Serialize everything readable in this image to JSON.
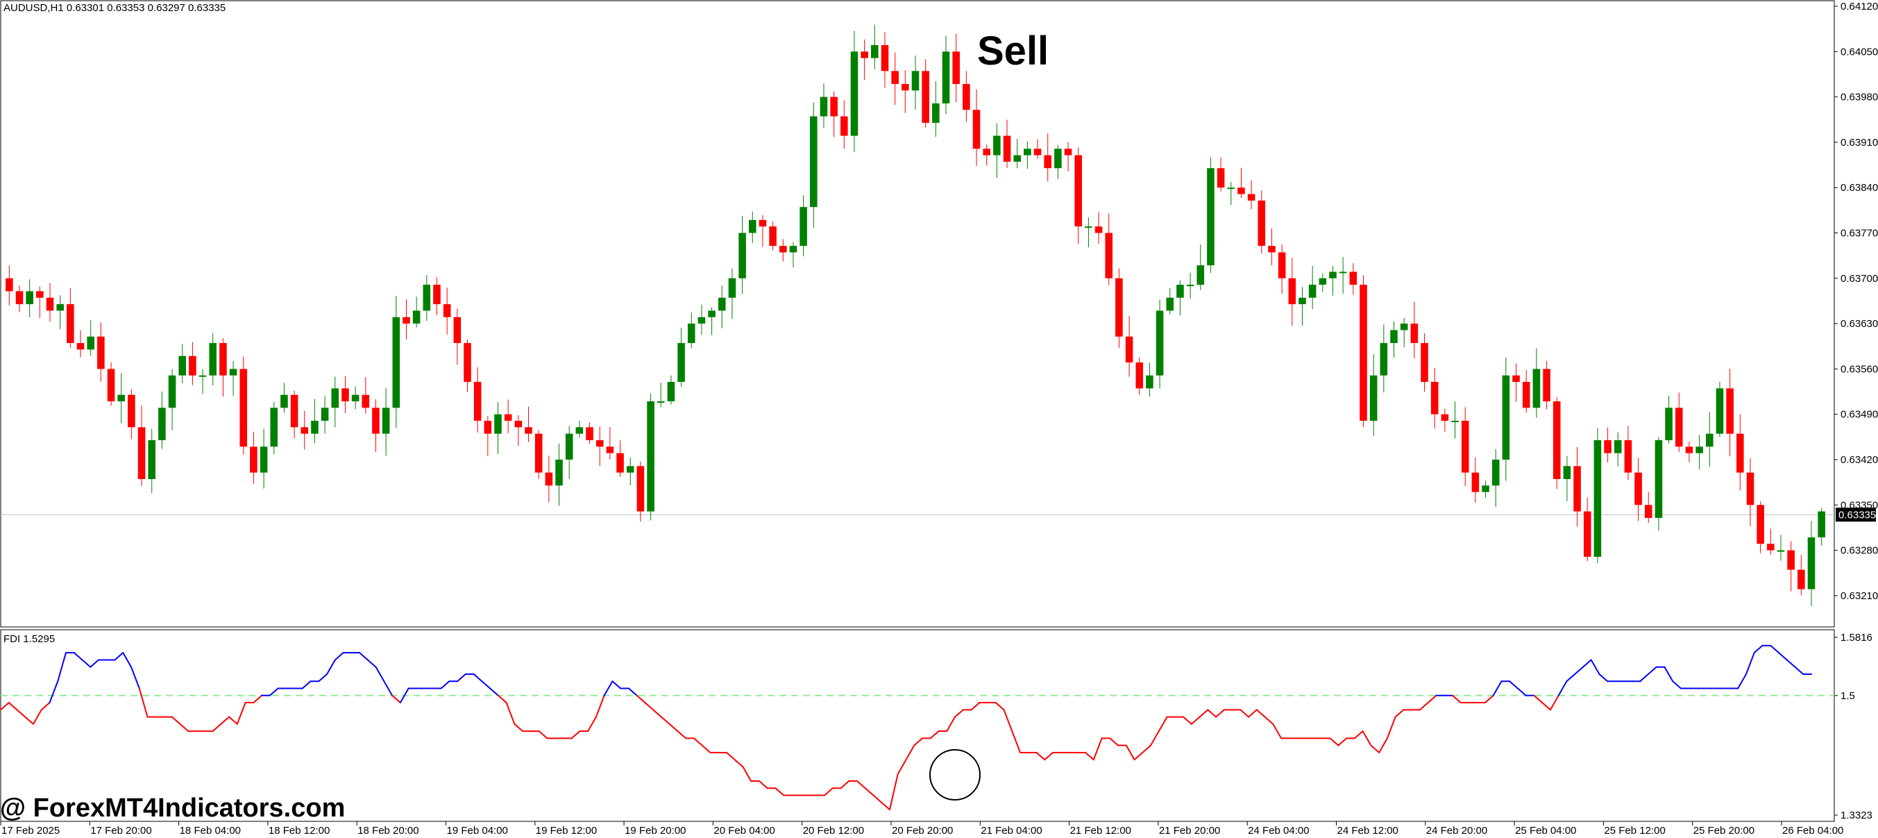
{
  "chart_header": {
    "symbol_info": "AUDUSD,H1  0.63301 0.63353 0.63297 0.63335"
  },
  "signal_label": "Sell",
  "watermark": "@ ForexMT4Indicators.com",
  "indicator_header": "FDI 1.5295",
  "current_price_label": "0.63335",
  "colors": {
    "bull": "#008000",
    "bear": "#ff0000",
    "fdi_above": "#0000ff",
    "fdi_below": "#ff0000",
    "level_line": "#90ee90",
    "grid_border": "#000000",
    "price_line": "#c0c0c0"
  },
  "chart_data": [
    {
      "type": "candlestick",
      "title": "AUDUSD,H1",
      "y_ticks": [
        "0.64120",
        "0.64050",
        "0.63980",
        "0.63910",
        "0.63840",
        "0.63770",
        "0.63700",
        "0.63630",
        "0.63560",
        "0.63490",
        "0.63420",
        "0.63350",
        "0.63280",
        "0.63210"
      ],
      "ylim": [
        0.6315,
        0.6412
      ],
      "x_tick_labels": [
        "17 Feb 2025",
        "17 Feb 20:00",
        "18 Feb 04:00",
        "18 Feb 12:00",
        "18 Feb 20:00",
        "19 Feb 04:00",
        "19 Feb 12:00",
        "19 Feb 20:00",
        "20 Feb 04:00",
        "20 Feb 12:00",
        "20 Feb 20:00",
        "21 Feb 04:00",
        "21 Feb 12:00",
        "21 Feb 20:00",
        "24 Feb 04:00",
        "24 Feb 12:00",
        "24 Feb 20:00",
        "25 Feb 04:00",
        "25 Feb 12:00",
        "25 Feb 20:00",
        "26 Feb 04:00"
      ],
      "current_price": 0.63335,
      "closes": [
        0.6368,
        0.6366,
        0.6368,
        0.6367,
        0.6365,
        0.6366,
        0.636,
        0.6359,
        0.6361,
        0.6356,
        0.6351,
        0.6352,
        0.6347,
        0.6339,
        0.6345,
        0.635,
        0.6355,
        0.6358,
        0.6355,
        0.6355,
        0.636,
        0.6355,
        0.6356,
        0.6344,
        0.634,
        0.6344,
        0.635,
        0.6352,
        0.6347,
        0.6346,
        0.6348,
        0.635,
        0.6353,
        0.6351,
        0.6352,
        0.635,
        0.6346,
        0.635,
        0.6364,
        0.6363,
        0.6365,
        0.6369,
        0.6366,
        0.6364,
        0.636,
        0.6354,
        0.6348,
        0.6346,
        0.6349,
        0.6348,
        0.6347,
        0.6346,
        0.634,
        0.6338,
        0.6342,
        0.6346,
        0.6347,
        0.6345,
        0.6344,
        0.6343,
        0.634,
        0.6341,
        0.6334,
        0.6351,
        0.6351,
        0.6354,
        0.636,
        0.6363,
        0.6364,
        0.6365,
        0.6367,
        0.637,
        0.6377,
        0.6379,
        0.6378,
        0.6375,
        0.6374,
        0.6375,
        0.6381,
        0.6395,
        0.6398,
        0.6395,
        0.6392,
        0.6405,
        0.6404,
        0.6406,
        0.6402,
        0.64,
        0.6399,
        0.6402,
        0.6394,
        0.6397,
        0.6405,
        0.64,
        0.6396,
        0.639,
        0.6389,
        0.6392,
        0.6388,
        0.6389,
        0.639,
        0.6389,
        0.6387,
        0.639,
        0.6389,
        0.6378,
        0.6378,
        0.6377,
        0.637,
        0.6361,
        0.6357,
        0.6353,
        0.6355,
        0.6365,
        0.6367,
        0.6369,
        0.6369,
        0.6372,
        0.6387,
        0.6384,
        0.6384,
        0.6383,
        0.6382,
        0.6375,
        0.6374,
        0.637,
        0.6366,
        0.6367,
        0.6369,
        0.637,
        0.6371,
        0.6371,
        0.6369,
        0.6348,
        0.6355,
        0.636,
        0.6362,
        0.6363,
        0.636,
        0.6354,
        0.6349,
        0.6348,
        0.6348,
        0.634,
        0.6337,
        0.6338,
        0.6342,
        0.6355,
        0.6354,
        0.635,
        0.6356,
        0.6351,
        0.6339,
        0.6341,
        0.6334,
        0.6327,
        0.6345,
        0.6343,
        0.6345,
        0.634,
        0.6335,
        0.6333,
        0.6345,
        0.635,
        0.6344,
        0.6343,
        0.6344,
        0.6346,
        0.6353,
        0.6346,
        0.634,
        0.6335,
        0.6329,
        0.6328,
        0.6328,
        0.6325,
        0.6322,
        0.633,
        0.6334
      ]
    },
    {
      "type": "line",
      "title": "FDI 1.5295",
      "y_ticks": [
        "1.5816",
        "1.5",
        "1.3323"
      ],
      "ylim": [
        1.3323,
        1.5816
      ],
      "level": 1.5,
      "values": [
        1.48,
        1.49,
        1.48,
        1.47,
        1.46,
        1.48,
        1.49,
        1.52,
        1.56,
        1.56,
        1.55,
        1.54,
        1.55,
        1.55,
        1.55,
        1.56,
        1.54,
        1.51,
        1.47,
        1.47,
        1.47,
        1.47,
        1.46,
        1.45,
        1.45,
        1.45,
        1.45,
        1.46,
        1.47,
        1.46,
        1.49,
        1.49,
        1.5,
        1.5,
        1.51,
        1.51,
        1.51,
        1.51,
        1.52,
        1.52,
        1.53,
        1.55,
        1.56,
        1.56,
        1.56,
        1.55,
        1.54,
        1.52,
        1.5,
        1.49,
        1.51,
        1.51,
        1.51,
        1.51,
        1.51,
        1.52,
        1.52,
        1.53,
        1.53,
        1.52,
        1.51,
        1.5,
        1.49,
        1.46,
        1.45,
        1.45,
        1.45,
        1.44,
        1.44,
        1.44,
        1.44,
        1.45,
        1.45,
        1.47,
        1.5,
        1.52,
        1.51,
        1.51,
        1.5,
        1.49,
        1.48,
        1.47,
        1.46,
        1.45,
        1.44,
        1.44,
        1.43,
        1.42,
        1.42,
        1.42,
        1.41,
        1.4,
        1.38,
        1.38,
        1.37,
        1.37,
        1.36,
        1.36,
        1.36,
        1.36,
        1.36,
        1.36,
        1.37,
        1.37,
        1.38,
        1.38,
        1.37,
        1.36,
        1.35,
        1.34,
        1.39,
        1.41,
        1.43,
        1.44,
        1.44,
        1.45,
        1.45,
        1.47,
        1.48,
        1.48,
        1.49,
        1.49,
        1.49,
        1.48,
        1.45,
        1.42,
        1.42,
        1.42,
        1.41,
        1.42,
        1.42,
        1.42,
        1.42,
        1.42,
        1.41,
        1.44,
        1.44,
        1.43,
        1.43,
        1.41,
        1.42,
        1.43,
        1.45,
        1.47,
        1.47,
        1.47,
        1.46,
        1.47,
        1.48,
        1.47,
        1.48,
        1.48,
        1.48,
        1.47,
        1.48,
        1.47,
        1.46,
        1.44,
        1.44,
        1.44,
        1.44,
        1.44,
        1.44,
        1.44,
        1.43,
        1.44,
        1.44,
        1.45,
        1.43,
        1.42,
        1.44,
        1.47,
        1.48,
        1.48,
        1.48,
        1.49,
        1.5,
        1.5,
        1.5,
        1.49,
        1.49,
        1.49,
        1.49,
        1.5,
        1.52,
        1.52,
        1.51,
        1.5,
        1.5,
        1.49,
        1.48,
        1.5,
        1.52,
        1.53,
        1.54,
        1.55,
        1.53,
        1.52,
        1.52,
        1.52,
        1.52,
        1.52,
        1.53,
        1.54,
        1.54,
        1.52,
        1.51,
        1.51,
        1.51,
        1.51,
        1.51,
        1.51,
        1.51,
        1.51,
        1.53,
        1.56,
        1.57,
        1.57,
        1.56,
        1.55,
        1.54,
        1.53,
        1.53
      ]
    }
  ]
}
